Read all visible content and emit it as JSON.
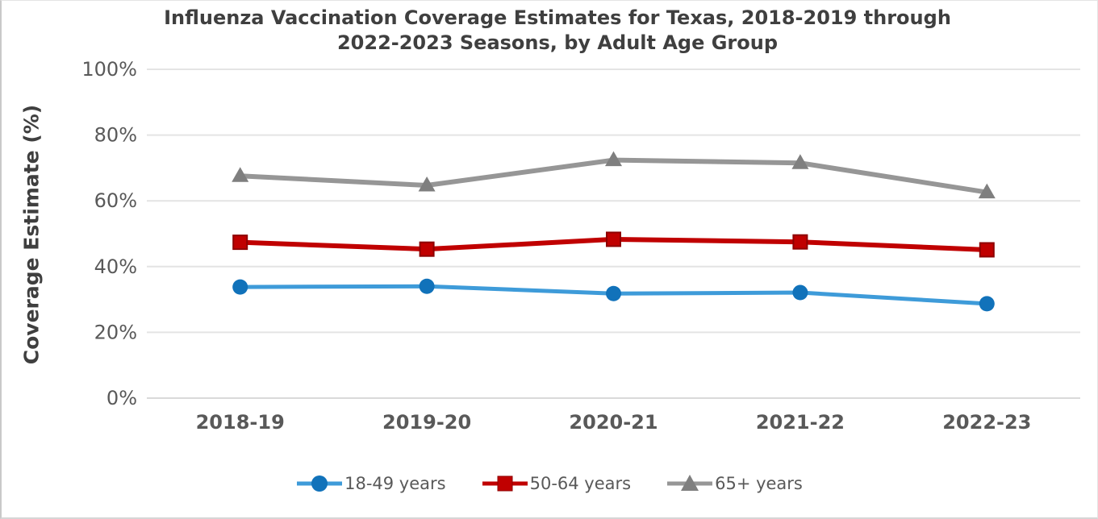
{
  "chart_data": {
    "type": "line",
    "title": "Influenza Vaccination Coverage Estimates for Texas, 2018-2019 through 2022-2023 Seasons, by Adult Age Group",
    "title_lines": [
      "Influenza Vaccination Coverage Estimates for Texas, 2018-2019 through",
      "2022-2023 Seasons, by Adult Age Group"
    ],
    "xlabel": "",
    "ylabel": "Coverage Estimate (%)",
    "categories": [
      "2018-19",
      "2019-20",
      "2020-21",
      "2021-22",
      "2022-23"
    ],
    "series": [
      {
        "name": "18-49 years",
        "marker": "circle",
        "line_color": "#3e9bd9",
        "marker_color": "#1172ba",
        "values": [
          33.8,
          34.0,
          31.8,
          32.1,
          28.7
        ]
      },
      {
        "name": "50-64 years",
        "marker": "square",
        "line_color": "#c00000",
        "marker_color": "#c00000",
        "marker_stroke": "#8e0000",
        "values": [
          47.4,
          45.3,
          48.3,
          47.5,
          45.1
        ]
      },
      {
        "name": "65+ years",
        "marker": "triangle",
        "line_color": "#969696",
        "marker_color": "#7f7f7f",
        "values": [
          67.6,
          64.7,
          72.4,
          71.5,
          62.6
        ]
      }
    ],
    "ylim": [
      0,
      100
    ],
    "ytick_values": [
      0,
      20,
      40,
      60,
      80,
      100
    ],
    "ytick_labels": [
      "0%",
      "20%",
      "40%",
      "60%",
      "80%",
      "100%"
    ],
    "grid": "horizontal",
    "legend_position": "bottom",
    "colors": {
      "gridline": "#e4e4e4",
      "baseline": "#d9d9d9",
      "tick_text": "#595959",
      "title_text": "#3f3f3f"
    }
  }
}
